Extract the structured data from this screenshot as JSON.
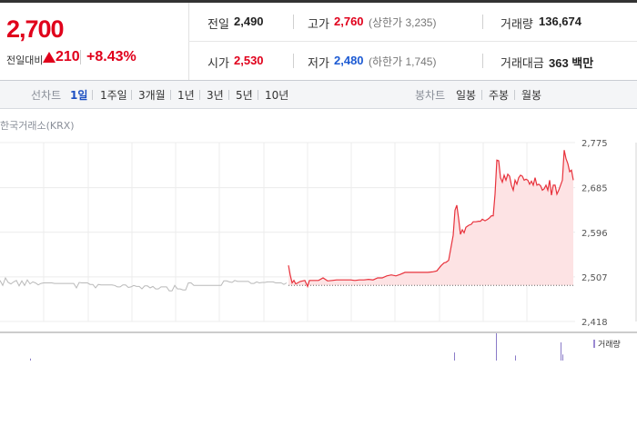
{
  "summary": {
    "price": "2,700",
    "change_label": "전일대비",
    "change_value": "210",
    "change_rate": "+8.43%",
    "prev_close": {
      "label": "전일",
      "value": "2,490"
    },
    "high": {
      "label": "고가",
      "value": "2,760",
      "limit": "(상한가 3,235)"
    },
    "volume": {
      "label": "거래량",
      "value": "136,674"
    },
    "open": {
      "label": "시가",
      "value": "2,530"
    },
    "low": {
      "label": "저가",
      "value": "2,480",
      "limit": "(하한가 1,745)"
    },
    "amount": {
      "label": "거래대금",
      "value": "363 백만"
    },
    "colors": {
      "up": "#e0001b",
      "down": "#1c5ad3"
    }
  },
  "toolbar": {
    "line_chart_label": "선차트",
    "periods": [
      "1일",
      "1주일",
      "3개월",
      "1년",
      "3년",
      "5년",
      "10년"
    ],
    "active_period": "1일",
    "candle_chart_label": "봉차트",
    "candles": [
      "일봉",
      "주봉",
      "월봉"
    ]
  },
  "chart_data": {
    "type": "line",
    "source_label": "한국거래소(KRX)",
    "volume_legend": "거래량",
    "y_ticks": [
      "2,775",
      "2,685",
      "2,596",
      "2,507",
      "2,418"
    ],
    "ylim": [
      2418,
      2775
    ],
    "baseline": 2490,
    "series": [
      {
        "style": "previous-session",
        "color": "#b9b9b9",
        "x": [
          0,
          3,
          6,
          9,
          12,
          15,
          18,
          21,
          24,
          27,
          30,
          33,
          36,
          39,
          42,
          45,
          48,
          51,
          54,
          57,
          60,
          63,
          66,
          69,
          72,
          75,
          78,
          81,
          84,
          87,
          90,
          93,
          96,
          99,
          102,
          105,
          108,
          111,
          114,
          117,
          120,
          123,
          126,
          129,
          132,
          135,
          138,
          141,
          144,
          147,
          150,
          153,
          156,
          159,
          162,
          165,
          168,
          171,
          174,
          177,
          180,
          183,
          186,
          189,
          192,
          195,
          198,
          201,
          204,
          207,
          210,
          213,
          216,
          219,
          222,
          225,
          228,
          231,
          234,
          237,
          240,
          243,
          246,
          249,
          252,
          255,
          258,
          261,
          264,
          267,
          270,
          273,
          276,
          279,
          282,
          285,
          288,
          291,
          294,
          297,
          300,
          303,
          306,
          309,
          312,
          315
        ],
        "values": [
          2500,
          2490,
          2505,
          2496,
          2493,
          2497,
          2500,
          2489,
          2499,
          2490,
          2501,
          2493,
          2497,
          2495,
          2491,
          2494,
          2495,
          2495,
          2495,
          2495,
          2494,
          2494,
          2494,
          2494,
          2494,
          2494,
          2494,
          2494,
          2485,
          2496,
          2495,
          2495,
          2495,
          2492,
          2492,
          2485,
          2492,
          2491,
          2491,
          2491,
          2491,
          2491,
          2490,
          2487,
          2487,
          2491,
          2491,
          2486,
          2487,
          2490,
          2488,
          2488,
          2483,
          2489,
          2489,
          2485,
          2488,
          2483,
          2483,
          2487,
          2487,
          2487,
          2479,
          2479,
          2490,
          2483,
          2483,
          2481,
          2481,
          2495,
          2495,
          2490,
          2490,
          2490,
          2490,
          2490,
          2490,
          2490,
          2490,
          2490,
          2490,
          2490,
          2499,
          2499,
          2497,
          2496,
          2500,
          2498,
          2498,
          2498,
          2498,
          2498,
          2494,
          2494,
          2497,
          2495,
          2496,
          2496,
          2497,
          2497,
          2497,
          2495,
          2495,
          2495,
          2492,
          2495
        ]
      },
      {
        "style": "today",
        "color": "#e8323c",
        "fill": "#fde3e4",
        "x": [
          317,
          319,
          321,
          323,
          325,
          330,
          335,
          338,
          340,
          345,
          350,
          355,
          360,
          365,
          370,
          375,
          380,
          385,
          390,
          395,
          400,
          405,
          410,
          415,
          420,
          425,
          430,
          435,
          440,
          445,
          450,
          455,
          460,
          465,
          470,
          475,
          480,
          485,
          488,
          490,
          493,
          496,
          498,
          500,
          502,
          504,
          506,
          508,
          510,
          512,
          515,
          518,
          520,
          523,
          526,
          528,
          530,
          533,
          536,
          538,
          540,
          542,
          544,
          546,
          548,
          550,
          552,
          554,
          556,
          558,
          560,
          562,
          564,
          566,
          568,
          570,
          572,
          574,
          576,
          578,
          580,
          582,
          584,
          586,
          588,
          590,
          592,
          594,
          596,
          598,
          600,
          602,
          604,
          606,
          608,
          610,
          612,
          614,
          616,
          618,
          620,
          622,
          624,
          626,
          628,
          630
        ],
        "values": [
          2530,
          2510,
          2495,
          2500,
          2493,
          2498,
          2500,
          2488,
          2500,
          2500,
          2500,
          2505,
          2499,
          2500,
          2501,
          2501,
          2501,
          2501,
          2500,
          2501,
          2501,
          2502,
          2501,
          2505,
          2505,
          2509,
          2511,
          2509,
          2512,
          2516,
          2516,
          2516,
          2516,
          2516,
          2516,
          2517,
          2519,
          2530,
          2535,
          2536,
          2540,
          2570,
          2590,
          2640,
          2650,
          2623,
          2592,
          2601,
          2595,
          2606,
          2610,
          2612,
          2617,
          2617,
          2618,
          2618,
          2622,
          2619,
          2622,
          2625,
          2629,
          2629,
          2672,
          2740,
          2739,
          2705,
          2696,
          2710,
          2700,
          2712,
          2708,
          2690,
          2680,
          2700,
          2692,
          2705,
          2710,
          2708,
          2700,
          2702,
          2700,
          2692,
          2698,
          2690,
          2705,
          2690,
          2692,
          2689,
          2680,
          2683,
          2690,
          2680,
          2700,
          2670,
          2690,
          2690,
          2672,
          2680,
          2690,
          2700,
          2760,
          2743,
          2733,
          2717,
          2720,
          2700
        ]
      }
    ],
    "volume": {
      "x": [
        33,
        499,
        545,
        566,
        616,
        618
      ],
      "values": [
        2,
        8,
        27,
        5,
        18,
        6
      ]
    }
  }
}
